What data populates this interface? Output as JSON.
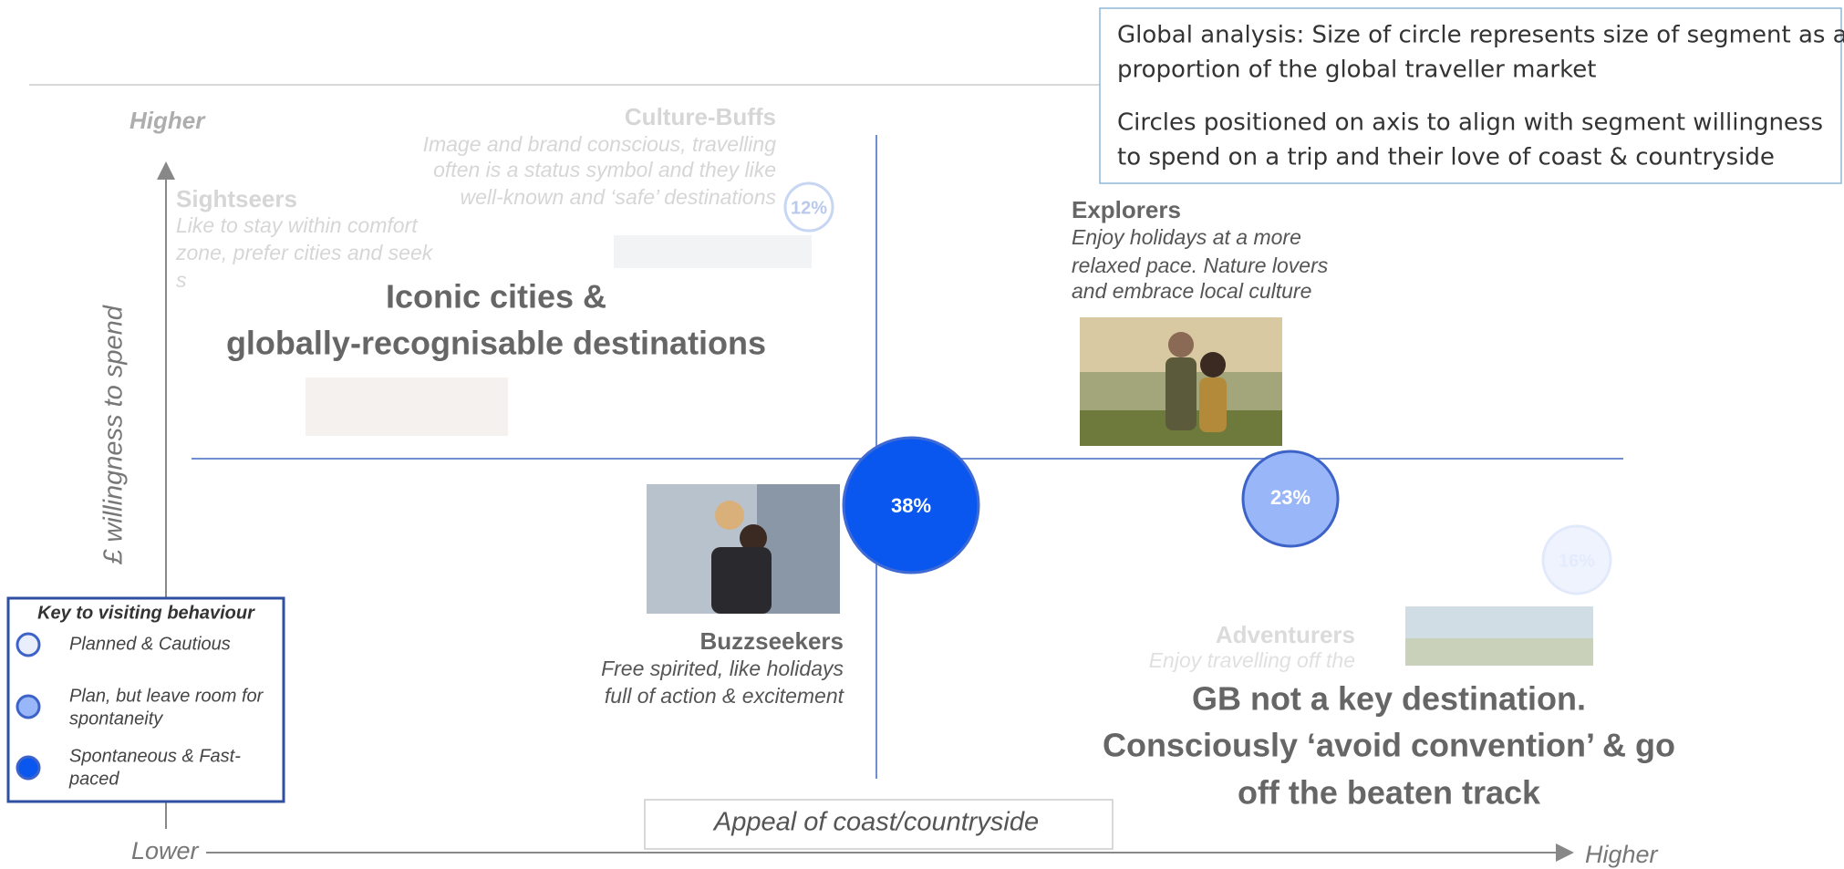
{
  "info_box": {
    "paragraphs": [
      [
        "Global analysis: Size of circle represents size of segment as a",
        "proportion of the global traveller market"
      ],
      [
        "Circles positioned on axis to align with segment willingness",
        "to spend on a trip and their love of coast & countryside"
      ]
    ]
  },
  "axes": {
    "y_label": "£ willingness to spend",
    "y_high": "Higher",
    "x_low": "Lower",
    "x_high": "Higher",
    "x_label": "Appeal of coast/countryside"
  },
  "segments": [
    {
      "name": "Culture-Buffs",
      "description": [
        "Image and brand conscious, travelling",
        "often is a status symbol and they like",
        "well-known and ‘safe’ destinations"
      ],
      "share": "12%"
    },
    {
      "name": "Sightseers",
      "description": [
        "Like to stay within comfort",
        "zone, prefer cities and seek",
        "s"
      ]
    },
    {
      "name": "Explorers",
      "description": [
        "Enjoy holidays at a more",
        "relaxed pace. Nature lovers",
        "and embrace local culture"
      ],
      "share": "23%"
    },
    {
      "name": "Buzzseekers",
      "description": [
        "Free spirited, like holidays",
        "full of action & excitement"
      ],
      "share": "38%"
    },
    {
      "name": "Adventurers",
      "description": [
        "Enjoy travelling off the"
      ],
      "share": "16%"
    }
  ],
  "overlays": [
    [
      "Iconic cities &",
      "globally-recognisable destinations"
    ],
    [
      "GB not a key destination.",
      "Consciously ‘avoid convention’ & go",
      "off the beaten track"
    ]
  ],
  "legend": {
    "title": "Key to visiting behaviour",
    "items": [
      [
        "Planned & Cautious"
      ],
      [
        "Plan, but leave room for",
        "spontaneity"
      ],
      [
        "Spontaneous & Fast-",
        "paced"
      ]
    ]
  }
}
